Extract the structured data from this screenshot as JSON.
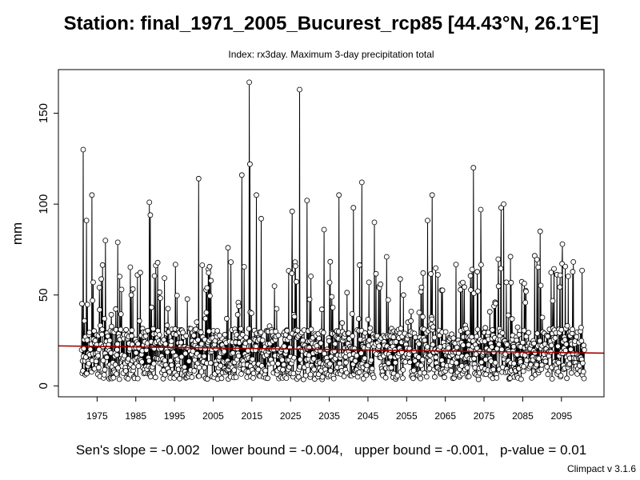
{
  "chart_data": {
    "type": "line",
    "title": "Station: final_1971_2005_Bucurest_rcp85 [44.43°N, 26.1°E]",
    "subtitle": "Index: rx3day. Maximum 3-day precipitation total",
    "xlabel": "",
    "ylabel": "mm",
    "xlim": [
      1965,
      2106
    ],
    "ylim": [
      -6,
      174
    ],
    "grid": false,
    "legend": "none",
    "x_ticks": [
      "1975",
      "1985",
      "1995",
      "2005",
      "2015",
      "2025",
      "2035",
      "2045",
      "2055",
      "2065",
      "2075",
      "2085",
      "2095"
    ],
    "y_ticks": [
      "0",
      "50",
      "100",
      "150"
    ],
    "series": [
      {
        "frequency": "monthly",
        "start": "1971-01",
        "end": "2100-12",
        "seed": 7,
        "baseline_mm": 19,
        "spread_mm": 14,
        "peaks": [
          {
            "date": "1971-06",
            "value": 130
          },
          {
            "date": "1972-04",
            "value": 91
          },
          {
            "date": "1973-09",
            "value": 105
          },
          {
            "date": "1977-03",
            "value": 80
          },
          {
            "date": "1980-05",
            "value": 79
          },
          {
            "date": "1988-07",
            "value": 101
          },
          {
            "date": "1988-10",
            "value": 94
          },
          {
            "date": "2001-04",
            "value": 114
          },
          {
            "date": "2008-11",
            "value": 76
          },
          {
            "date": "2012-06",
            "value": 116
          },
          {
            "date": "2014-05",
            "value": 167
          },
          {
            "date": "2014-07",
            "value": 122
          },
          {
            "date": "2016-03",
            "value": 105
          },
          {
            "date": "2017-06",
            "value": 92
          },
          {
            "date": "2025-06",
            "value": 96
          },
          {
            "date": "2027-05",
            "value": 163
          },
          {
            "date": "2029-04",
            "value": 102
          },
          {
            "date": "2033-09",
            "value": 86
          },
          {
            "date": "2037-07",
            "value": 105
          },
          {
            "date": "2041-04",
            "value": 98
          },
          {
            "date": "2043-06",
            "value": 112
          },
          {
            "date": "2046-09",
            "value": 90
          },
          {
            "date": "2061-08",
            "value": 105
          },
          {
            "date": "2060-06",
            "value": 91
          },
          {
            "date": "2072-04",
            "value": 120
          },
          {
            "date": "2074-03",
            "value": 97
          },
          {
            "date": "2079-06",
            "value": 98
          },
          {
            "date": "2080-02",
            "value": 100
          },
          {
            "date": "2089-07",
            "value": 85
          },
          {
            "date": "2095-04",
            "value": 78
          }
        ]
      }
    ],
    "trend_line": {
      "y_start": 22,
      "y_end": 18,
      "color": "#a00000"
    }
  },
  "stats": "Sen's slope = -0.002   lower bound = -0.004,   upper bound = -0.001,   p-value = 0.01",
  "footer": "Climpact v 3.1.6"
}
